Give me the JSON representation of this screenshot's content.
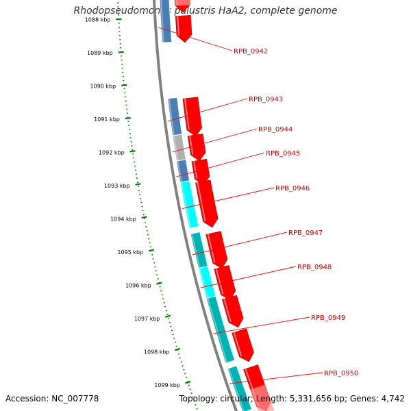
{
  "title": "Rhodopseudomonas palustris HaA2, complete genome",
  "accession": "Accession: NC_007778",
  "summary": "Topology: circular; Length: 5,331,656 bp; Genes: 4,742",
  "colors": {
    "backbone": "#808080",
    "ruler": "#008000",
    "forward_cds": "#ff0000",
    "label_line": "#ff0000",
    "label_text": "#cc0000",
    "cog_blue": "#4a7fb5",
    "cog_cyan": "#00ffff",
    "cog_teal": "#00b3b3",
    "cog_gray": "#b0b0b0"
  },
  "ruler_ticks": [
    "1088 kbp",
    "1089 kbp",
    "1090 kbp",
    "1091 kbp",
    "1092 kbp",
    "1093 kbp",
    "1094 kbp",
    "1095 kbp",
    "1096 kbp",
    "1097 kbp",
    "1098 kbp",
    "1099 kbp"
  ],
  "genes": [
    {
      "label": "RPB_0942",
      "cog_color": "#4a7fb5"
    },
    {
      "label": "RPB_0943",
      "cog_color": "#4a7fb5"
    },
    {
      "label": "RPB_0944",
      "cog_color": "#b0b0b0"
    },
    {
      "label": "RPB_0945",
      "cog_color": "#4a7fb5"
    },
    {
      "label": "RPB_0946",
      "cog_color": "#00ffff"
    },
    {
      "label": "RPB_0947",
      "cog_color": "#00b3b3"
    },
    {
      "label": "RPB_0948",
      "cog_color": "#00ffff"
    },
    {
      "label": "RPB_0949",
      "cog_color": "#00b3b3"
    },
    {
      "label": "RPB_0950",
      "cog_color": "#00b3b3"
    }
  ]
}
